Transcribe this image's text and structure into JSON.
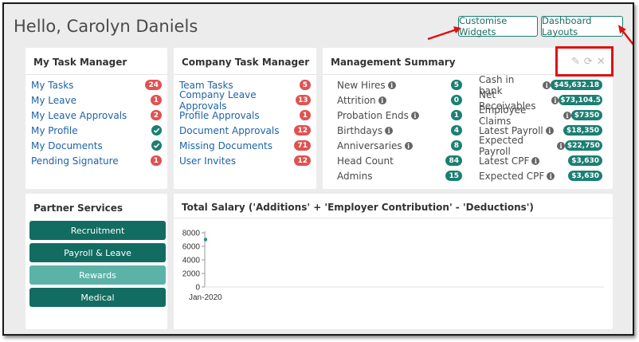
{
  "greeting": "Hello, Carolyn Daniels",
  "top_buttons": {
    "customise": "Customise Widgets",
    "layouts": "Dashboard Layouts"
  },
  "my_task_manager": {
    "title": "My Task Manager",
    "items": [
      {
        "label": "My Tasks",
        "count": "24",
        "type": "badge"
      },
      {
        "label": "My Leave",
        "count": "1",
        "type": "badge"
      },
      {
        "label": "My Leave Approvals",
        "count": "2",
        "type": "badge"
      },
      {
        "label": "My Profile",
        "count": "",
        "type": "check"
      },
      {
        "label": "My Documents",
        "count": "",
        "type": "check"
      },
      {
        "label": "Pending Signature",
        "count": "1",
        "type": "badge"
      }
    ]
  },
  "company_task_manager": {
    "title": "Company Task Manager",
    "items": [
      {
        "label": "Team Tasks",
        "count": "5"
      },
      {
        "label": "Company Leave Approvals",
        "count": "13"
      },
      {
        "label": "Profile Approvals",
        "count": "1"
      },
      {
        "label": "Document Approvals",
        "count": "12"
      },
      {
        "label": "Missing Documents",
        "count": "71"
      },
      {
        "label": "User Invites",
        "count": "12"
      }
    ]
  },
  "management_summary": {
    "title": "Management Summary",
    "left": [
      {
        "label": "New Hires",
        "value": "5",
        "info": true
      },
      {
        "label": "Attrition",
        "value": "0",
        "info": true
      },
      {
        "label": "Probation Ends",
        "value": "1",
        "info": true
      },
      {
        "label": "Birthdays",
        "value": "4",
        "info": true
      },
      {
        "label": "Anniversaries",
        "value": "8",
        "info": true
      },
      {
        "label": "Head Count",
        "value": "84",
        "info": false
      },
      {
        "label": "Admins",
        "value": "15",
        "info": false
      }
    ],
    "right": [
      {
        "label": "Cash in bank",
        "value": "$45,632.18"
      },
      {
        "label": "Net Receivables",
        "value": "$73,104.5"
      },
      {
        "label": "Employee Claims",
        "value": "$7350"
      },
      {
        "label": "Latest Payroll",
        "value": "$18,350"
      },
      {
        "label": "Expected Payroll",
        "value": "$22,750"
      },
      {
        "label": "Latest CPF",
        "value": "$3,630"
      },
      {
        "label": "Expected CPF",
        "value": "$3,630"
      }
    ]
  },
  "partner_services": {
    "title": "Partner Services",
    "buttons": [
      "Recruitment",
      "Payroll & Leave",
      "Rewards",
      "Medical"
    ]
  },
  "chart_data": {
    "type": "line",
    "title": "Total Salary ('Additions' + 'Employer Contribution' - 'Deductions')",
    "categories": [
      "Jan-2020"
    ],
    "series": [
      {
        "values": [
          7000
        ]
      }
    ],
    "yticks": [
      "8000",
      "6000",
      "4000",
      "2000",
      "0"
    ],
    "ylim": [
      0,
      8000
    ],
    "color": "#2a8f86"
  }
}
